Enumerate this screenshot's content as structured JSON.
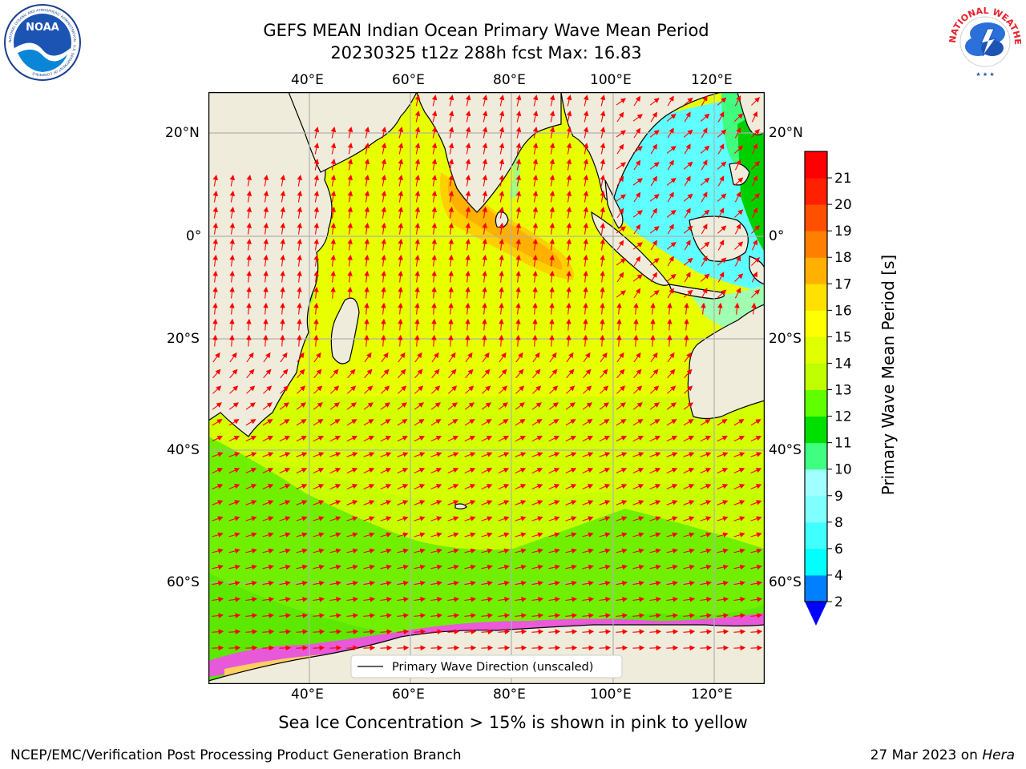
{
  "header": {
    "title_line1": "GEFS MEAN Indian Ocean Primary Wave Mean Period",
    "title_line2": "20230325 t12z 288h fcst   Max: 16.83"
  },
  "logos": {
    "noaa_text": "NOAA",
    "noaa_ring_text": "NATIONAL OCEANIC AND ATMOSPHERIC ADMINISTRATION · U.S. DEPARTMENT OF COMMERCE",
    "nws_ring_text": "NATIONAL WEATHER SERVICE"
  },
  "map": {
    "lon_ticks": [
      "40°E",
      "60°E",
      "80°E",
      "100°E",
      "120°E"
    ],
    "lat_ticks": [
      "20°N",
      "0°",
      "20°S",
      "40°S",
      "60°S"
    ],
    "legend_label": "Primary Wave Direction (unscaled)",
    "land_color": "#efecdc",
    "grid_color": "#b0b0b0",
    "arrow_color": "#ff0000",
    "ice_colors": [
      "#ff40ff",
      "#ffa0c0",
      "#ffd060",
      "#ffff80"
    ]
  },
  "colorbar": {
    "label": "Primary Wave Mean Period [s]",
    "ticks": [
      "2",
      "4",
      "6",
      "8",
      "9",
      "10",
      "11",
      "12",
      "13",
      "14",
      "15",
      "16",
      "17",
      "18",
      "19",
      "20",
      "21"
    ],
    "colors": [
      "#0080ff",
      "#00ffff",
      "#40ffff",
      "#80ffff",
      "#a0ffff",
      "#40ff80",
      "#00e000",
      "#60ff00",
      "#c0ff00",
      "#e0ff00",
      "#ffff00",
      "#ffe000",
      "#ffb000",
      "#ff8000",
      "#ff5000",
      "#ff2000",
      "#ff0000"
    ],
    "extend_color": "#0000ff"
  },
  "footer": {
    "ice_note": "Sea Ice Concentration > 15% is shown in pink to yellow",
    "credit": "NCEP/EMC/Verification Post Processing Product Generation Branch",
    "date": "27 Mar 2023 on ",
    "host": "Hera"
  }
}
